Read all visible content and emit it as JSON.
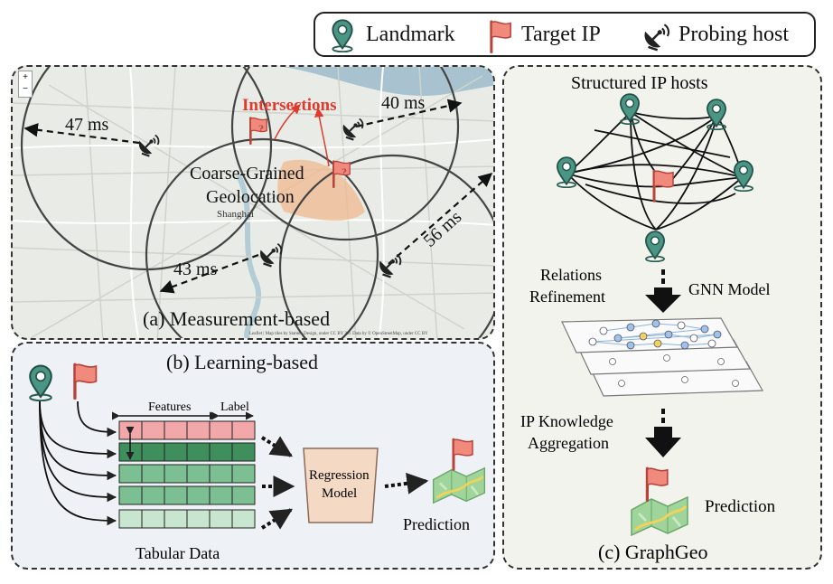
{
  "legend": {
    "landmark": "Landmark",
    "target_ip": "Target IP",
    "probing_host": "Probing host"
  },
  "panel_a": {
    "caption": "(a) Measurement-based",
    "intersections": "Intersections",
    "coarse_line1": "Coarse-Grained",
    "coarse_line2": "Geolocation",
    "map_city": "Shanghai",
    "rtt_47": "47 ms",
    "rtt_40": "40 ms",
    "rtt_43": "43 ms",
    "rtt_56": "56 ms",
    "zoom_in": "+",
    "zoom_out": "−",
    "attribution": "Leaflet | Map tiles by Stamen Design, under CC BY 3.0. Data by © OpenStreetMap, under CC BY"
  },
  "panel_b": {
    "caption": "(b) Learning-based",
    "features": "Features",
    "label": "Label",
    "tabular": "Tabular Data",
    "model_line1": "Regression",
    "model_line2": "Model",
    "prediction": "Prediction"
  },
  "panel_c": {
    "title": "Structured IP hosts",
    "relations_line1": "Relations",
    "relations_line2": "Refinement",
    "gnn": "GNN Model",
    "knowledge_line1": "IP Knowledge",
    "knowledge_line2": "Aggregation",
    "prediction": "Prediction",
    "caption": "(c) GraphGeo"
  },
  "colors": {
    "landmark": "#3b7d6e",
    "flag": "#e06a5c",
    "intersect": "#f0b98f",
    "row_pink": "#f2a7a9",
    "row_green": "#7cbf92"
  }
}
